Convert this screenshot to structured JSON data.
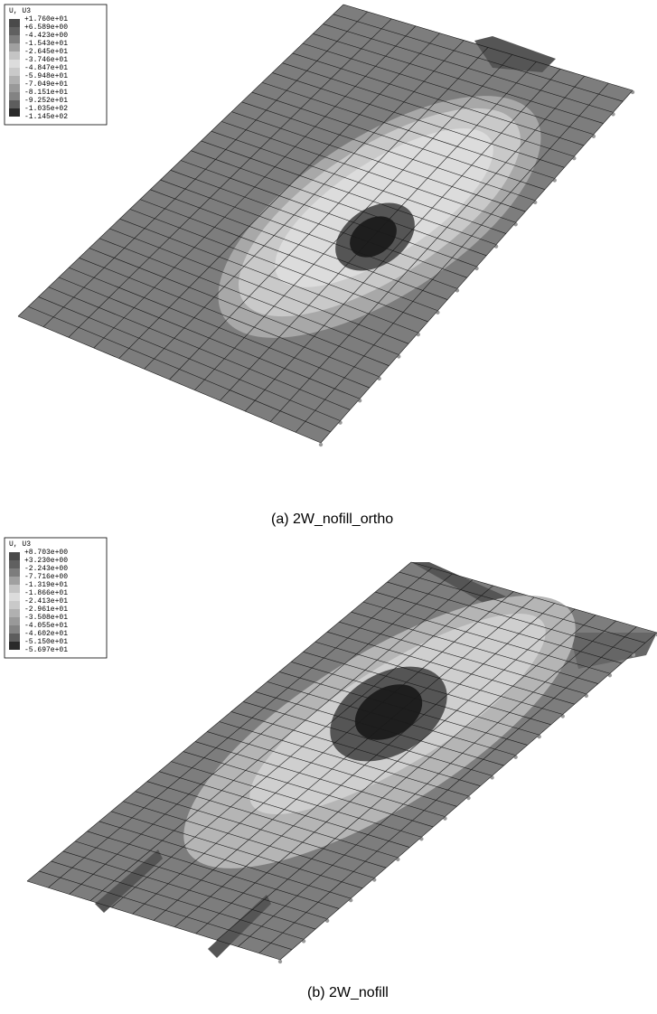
{
  "panels": [
    {
      "legend": {
        "title": "U, U3",
        "values": [
          "+1.760e+01",
          "+6.589e+00",
          "-4.423e+00",
          "-1.543e+01",
          "-2.645e+01",
          "-3.746e+01",
          "-4.847e+01",
          "-5.948e+01",
          "-7.049e+01",
          "-8.151e+01",
          "-9.252e+01",
          "-1.035e+02",
          "-1.145e+02"
        ]
      },
      "caption": "(a)  2W_nofill_ortho"
    },
    {
      "legend": {
        "title": "U, U3",
        "values": [
          "+8.703e+00",
          "+3.230e+00",
          "-2.243e+00",
          "-7.716e+00",
          "-1.319e+01",
          "-1.866e+01",
          "-2.413e+01",
          "-2.961e+01",
          "-3.508e+01",
          "-4.055e+01",
          "-4.602e+01",
          "-5.150e+01",
          "-5.697e+01"
        ]
      },
      "caption": "(b)  2W_nofill"
    }
  ]
}
